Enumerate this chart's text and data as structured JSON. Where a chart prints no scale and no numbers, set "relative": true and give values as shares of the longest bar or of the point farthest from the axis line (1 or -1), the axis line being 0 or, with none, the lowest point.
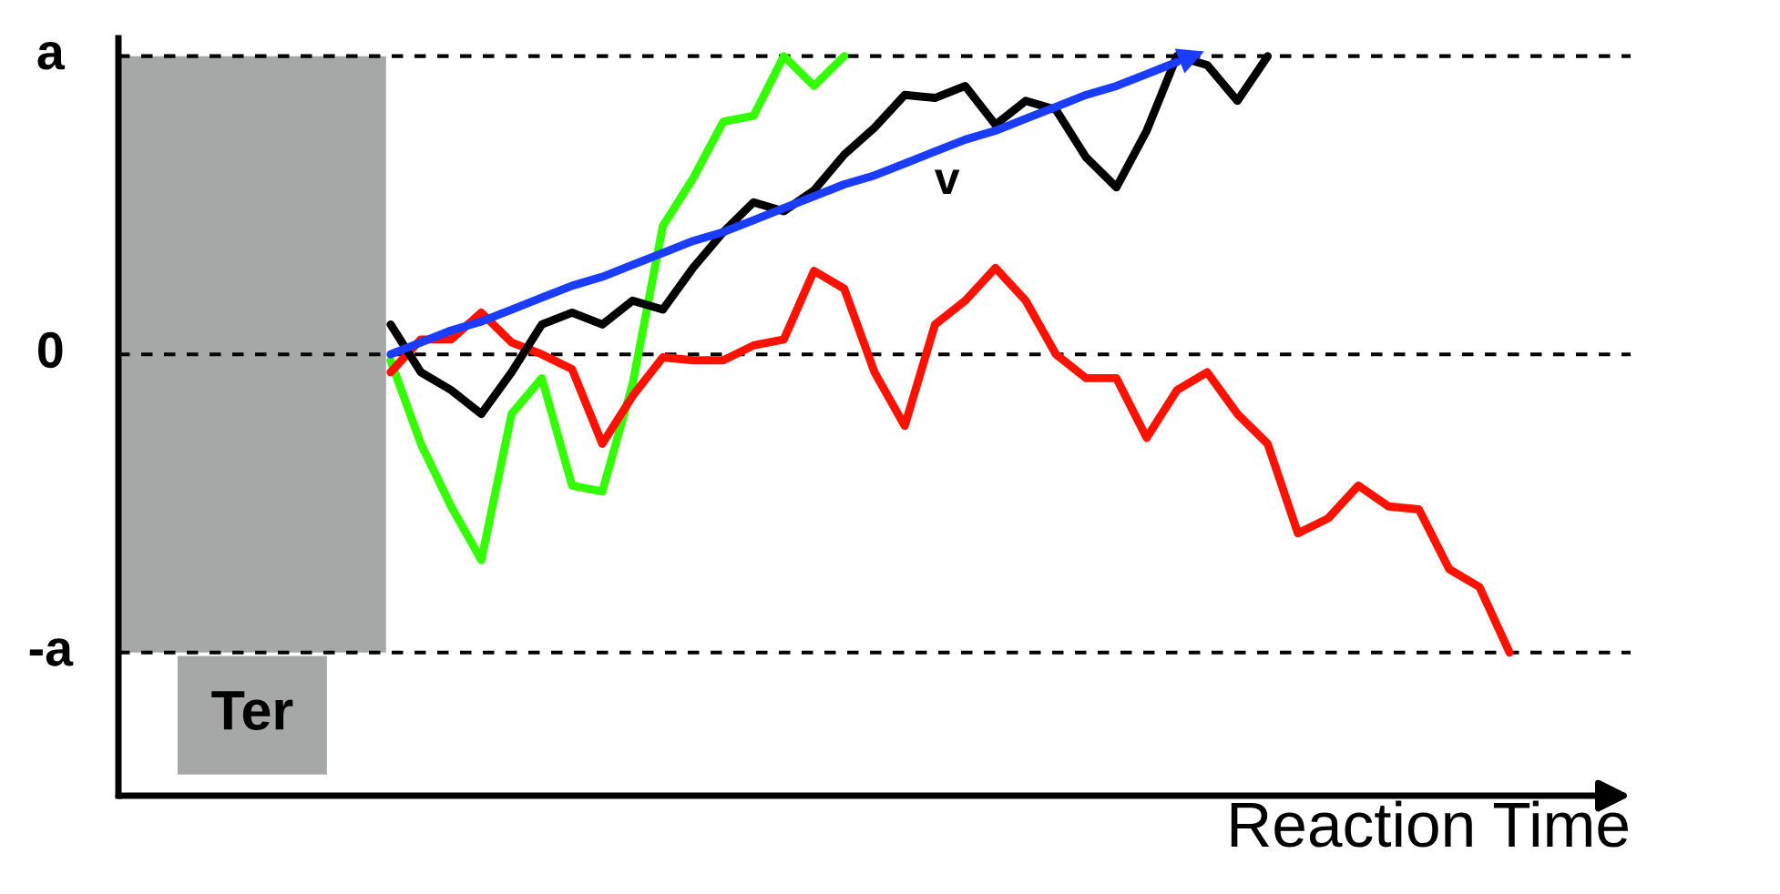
{
  "chart_data": {
    "type": "line",
    "xlabel": "Reaction Time",
    "categories": [
      null,
      null,
      null,
      null,
      null,
      null,
      null,
      null,
      null,
      null,
      null,
      null,
      null,
      null,
      null,
      null,
      null,
      null,
      null,
      null,
      null,
      null,
      null,
      null,
      null,
      null,
      null,
      null,
      null,
      null,
      null,
      null,
      null,
      null,
      null,
      null,
      null,
      null,
      null,
      null,
      null,
      null,
      null,
      null,
      null,
      null,
      null,
      null,
      null,
      null,
      null
    ],
    "relative": true,
    "tick_labels": false,
    "grid": false,
    "legend": false,
    "ref_lines": [
      {
        "axis": "y",
        "value": 1,
        "label": "a",
        "line_style": "dashed",
        "color": "#000000"
      },
      {
        "axis": "y",
        "value": 0,
        "label": "0",
        "line_style": "dashed",
        "color": "#000000"
      },
      {
        "axis": "y",
        "value": -1,
        "label": "-a",
        "line_style": "dashed",
        "color": "#000000"
      }
    ],
    "annotations": [
      "Ter",
      "v"
    ],
    "series": [
      {
        "color": "#33ff00",
        "values": [
          null,
          null,
          null,
          null,
          null,
          null,
          null,
          null,
          null,
          -0.02,
          -0.3,
          -0.51,
          -0.69,
          -0.2,
          -0.08,
          -0.44,
          -0.46,
          -0.1,
          0.43,
          0.59,
          0.78,
          0.8,
          1.0,
          0.9,
          1.0,
          null,
          null,
          null,
          null,
          null,
          null,
          null,
          null,
          null,
          null,
          null,
          null,
          null,
          null,
          null,
          null,
          null,
          null,
          null,
          null,
          null,
          null,
          null,
          null,
          null,
          null
        ]
      },
      {
        "color": "#ff1100",
        "values": [
          null,
          null,
          null,
          null,
          null,
          null,
          null,
          null,
          null,
          -0.06,
          0.05,
          0.05,
          0.14,
          0.04,
          0.0,
          -0.05,
          -0.3,
          -0.14,
          -0.01,
          -0.02,
          -0.02,
          0.03,
          0.05,
          0.28,
          0.22,
          -0.06,
          -0.24,
          0.1,
          0.18,
          0.29,
          0.18,
          0.0,
          -0.08,
          -0.08,
          -0.28,
          -0.12,
          -0.06,
          -0.2,
          -0.3,
          -0.6,
          -0.55,
          -0.44,
          -0.51,
          -0.52,
          -0.72,
          -0.78,
          -1.0,
          null,
          null,
          null,
          null
        ]
      },
      {
        "color": "#000000",
        "values": [
          null,
          null,
          null,
          null,
          null,
          null,
          null,
          null,
          null,
          0.1,
          -0.06,
          -0.12,
          -0.2,
          -0.06,
          0.1,
          0.14,
          0.1,
          0.18,
          0.15,
          0.29,
          0.41,
          0.51,
          0.48,
          0.55,
          0.67,
          0.76,
          0.87,
          0.86,
          0.9,
          0.77,
          0.85,
          0.82,
          0.66,
          0.56,
          0.75,
          1.0,
          0.97,
          0.85,
          1.0,
          null,
          null,
          null,
          null,
          null,
          null,
          null,
          null,
          null,
          null,
          null,
          null
        ]
      },
      {
        "color": "#1a3cff",
        "values": [
          null,
          null,
          null,
          null,
          null,
          null,
          null,
          null,
          null,
          0.0,
          0.04,
          0.08,
          0.11,
          0.15,
          0.19,
          0.23,
          0.26,
          0.3,
          0.34,
          0.38,
          0.41,
          0.45,
          0.49,
          0.53,
          0.57,
          0.6,
          0.64,
          0.68,
          0.72,
          0.75,
          0.79,
          0.83,
          0.87,
          0.9,
          0.94,
          0.98,
          null,
          null,
          null,
          null,
          null,
          null,
          null,
          null,
          null,
          null,
          null,
          null,
          null,
          null,
          null
        ]
      }
    ]
  }
}
